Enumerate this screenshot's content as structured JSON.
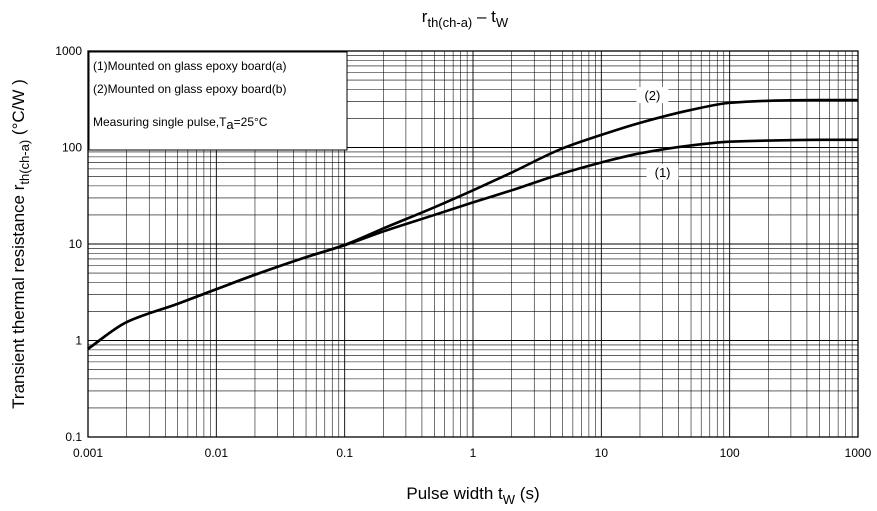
{
  "chart_data": {
    "type": "line",
    "title": {
      "main": "r",
      "main_sub": "th(ch-a)",
      "dash": " – ",
      "right": "t",
      "right_sub": "W"
    },
    "xlabel": {
      "text": "Pulse width   t",
      "sub": "W",
      "unit": " (s)"
    },
    "ylabel": {
      "text": "Transient thermal resistance   r",
      "sub": "th(ch-a)",
      "unit": "   (°C/W )"
    },
    "x_scale": "log",
    "y_scale": "log",
    "xlim": [
      0.001,
      1000
    ],
    "ylim": [
      0.1,
      1000
    ],
    "x_ticks": [
      0.001,
      0.01,
      0.1,
      1,
      10,
      100,
      1000
    ],
    "x_tick_labels": [
      "0.001",
      "0.01",
      "0.1",
      "1",
      "10",
      "100",
      "1000"
    ],
    "y_ticks": [
      0.1,
      1,
      10,
      100,
      1000
    ],
    "y_tick_labels": [
      "0.1",
      "1",
      "10",
      "100",
      "1000"
    ],
    "grid": true,
    "legend_position": "top-left",
    "legend": {
      "line1": "(1)Mounted on glass epoxy board(a)",
      "line2": "(2)Mounted on glass epoxy board(b)",
      "line3_prefix": "Measuring single pulse,T",
      "line3_sub": "a",
      "line3_suffix": "=25°C"
    },
    "series": [
      {
        "name": "(1)",
        "x": [
          0.001,
          0.002,
          0.005,
          0.01,
          0.02,
          0.05,
          0.1,
          0.2,
          0.5,
          1,
          2,
          5,
          10,
          20,
          50,
          100,
          200,
          500,
          1000
        ],
        "y": [
          0.82,
          1.55,
          2.4,
          3.4,
          4.8,
          7.3,
          9.7,
          13.5,
          20,
          27,
          36,
          54,
          70,
          87,
          105,
          115,
          118,
          120,
          120
        ]
      },
      {
        "name": "(2)",
        "x": [
          0.001,
          0.002,
          0.005,
          0.01,
          0.02,
          0.05,
          0.1,
          0.2,
          0.5,
          1,
          2,
          5,
          10,
          20,
          50,
          100,
          200,
          500,
          1000
        ],
        "y": [
          0.82,
          1.55,
          2.4,
          3.4,
          4.8,
          7.3,
          9.8,
          14.5,
          24,
          36,
          55,
          98,
          135,
          180,
          245,
          290,
          305,
          310,
          310
        ]
      }
    ]
  }
}
